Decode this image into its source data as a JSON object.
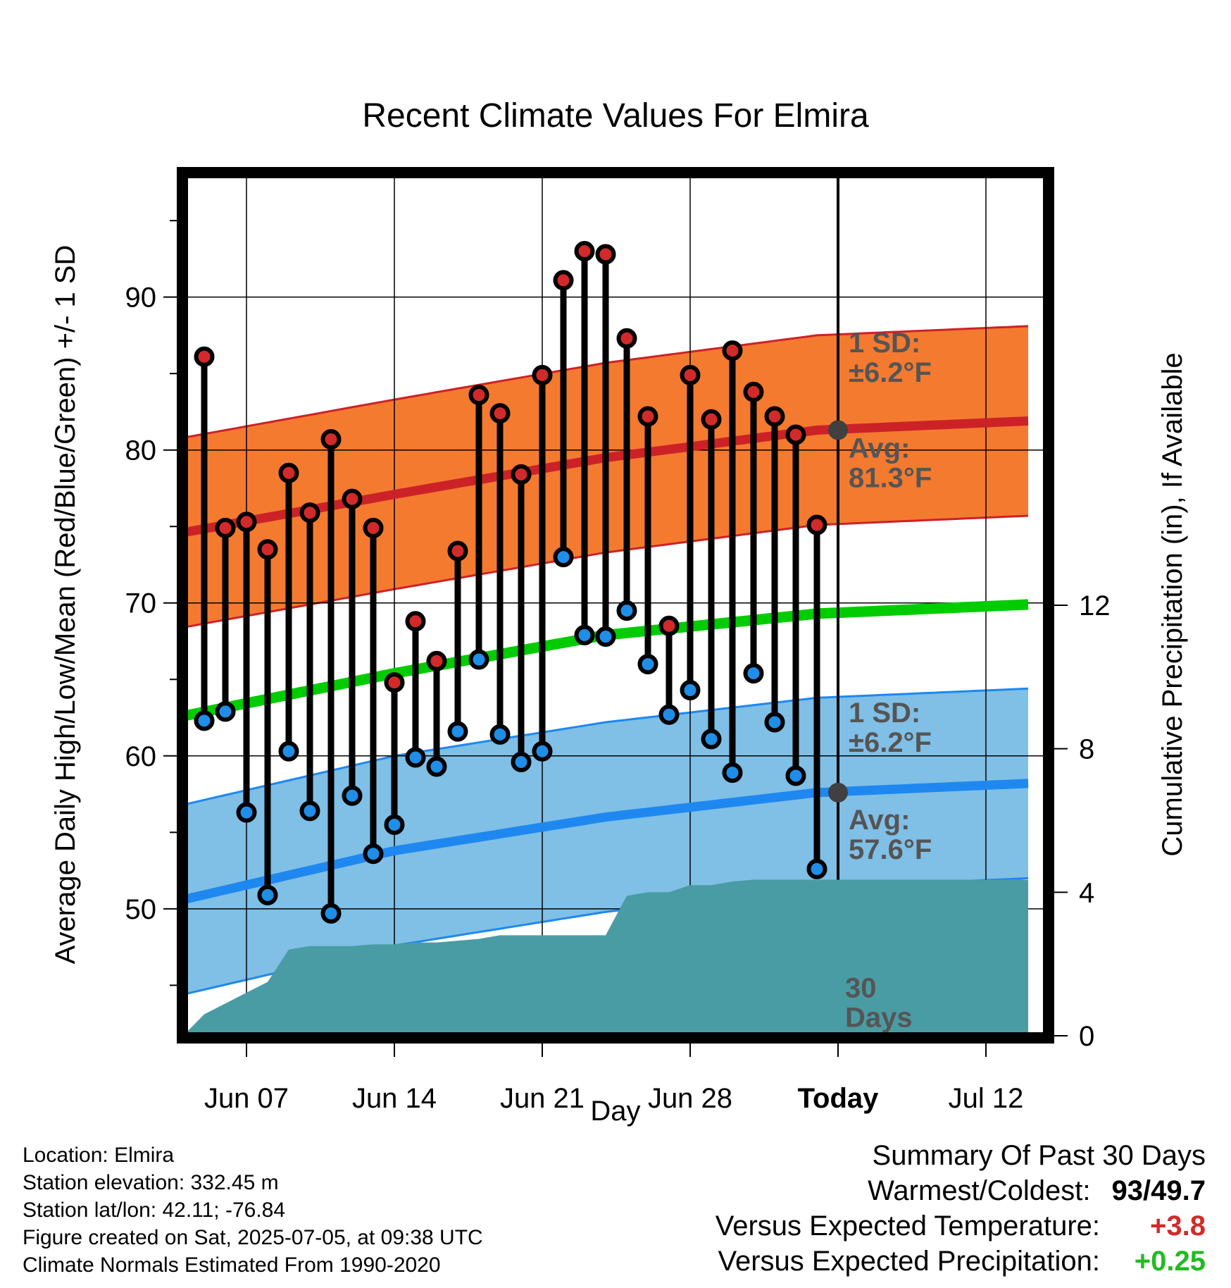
{
  "chart_data": {
    "type": "line",
    "title": "Recent Climate Values For Elmira",
    "xlabel": "Day",
    "ylabel": "Average Daily High/Low/Mean (Red/Blue/Green) +/- 1 SD",
    "y2label": "Cumulative Precipitation (in), If Available",
    "x_tick_labels": [
      "Jun 07",
      "Jun 14",
      "Jun 21",
      "Jun 28",
      "Today",
      "Jul 12"
    ],
    "y_ticks": [
      50,
      60,
      70,
      80,
      90
    ],
    "y2_ticks": [
      0,
      4,
      8,
      12
    ],
    "ylim": [
      41.7,
      98
    ],
    "y2lim": [
      0,
      24
    ],
    "days_observed": [
      "Jun 05",
      "Jun 06",
      "Jun 07",
      "Jun 08",
      "Jun 09",
      "Jun 10",
      "Jun 11",
      "Jun 12",
      "Jun 13",
      "Jun 14",
      "Jun 15",
      "Jun 16",
      "Jun 17",
      "Jun 18",
      "Jun 19",
      "Jun 20",
      "Jun 21",
      "Jun 22",
      "Jun 23",
      "Jun 24",
      "Jun 25",
      "Jun 26",
      "Jun 27",
      "Jun 28",
      "Jun 29",
      "Jun 30",
      "Jul 01",
      "Jul 02",
      "Jul 03",
      "Jul 04"
    ],
    "series": [
      {
        "name": "Daily High",
        "values": [
          86.1,
          74.9,
          75.3,
          73.5,
          78.5,
          75.9,
          80.7,
          76.8,
          74.9,
          64.8,
          68.8,
          66.2,
          73.4,
          83.6,
          82.4,
          78.4,
          84.9,
          91.1,
          93.0,
          92.8,
          87.3,
          82.2,
          68.5,
          84.9,
          82.0,
          86.5,
          83.8,
          82.2,
          81.0,
          75.1
        ]
      },
      {
        "name": "Daily Low",
        "values": [
          62.3,
          62.9,
          56.3,
          50.9,
          60.3,
          56.4,
          49.7,
          57.4,
          53.6,
          55.5,
          59.9,
          59.3,
          61.6,
          66.3,
          61.4,
          59.6,
          60.3,
          73.0,
          67.9,
          67.8,
          69.5,
          66.0,
          62.7,
          64.3,
          61.1,
          58.9,
          65.4,
          62.2,
          58.7,
          52.6
        ]
      }
    ],
    "normals": {
      "dates": [
        "Jun 04",
        "Jun 14",
        "Jun 24",
        "Jul 04",
        "Jul 14"
      ],
      "avg_high": [
        74.6,
        77.1,
        79.5,
        81.3,
        81.9
      ],
      "avg_low": [
        50.6,
        53.8,
        56.0,
        57.6,
        58.2
      ],
      "avg_mean": [
        62.6,
        65.4,
        67.9,
        69.3,
        69.9
      ],
      "sd": 6.2
    },
    "precipitation": {
      "name": "Cumulative Precipitation",
      "dates": [
        "Jun 04",
        "Jun 05",
        "Jun 06",
        "Jun 07",
        "Jun 08",
        "Jun 09",
        "Jun 10",
        "Jun 11",
        "Jun 12",
        "Jun 13",
        "Jun 14",
        "Jun 15",
        "Jun 16",
        "Jun 17",
        "Jun 18",
        "Jun 19",
        "Jun 20",
        "Jun 21",
        "Jun 22",
        "Jun 23",
        "Jun 24",
        "Jun 25",
        "Jun 26",
        "Jun 27",
        "Jun 28",
        "Jun 29",
        "Jun 30",
        "Jul 01",
        "Jul 02",
        "Jul 03",
        "Jul 04",
        "Jul 14"
      ],
      "values": [
        0.0,
        0.6,
        0.9,
        1.2,
        1.5,
        2.4,
        2.5,
        2.5,
        2.5,
        2.55,
        2.55,
        2.6,
        2.6,
        2.65,
        2.7,
        2.8,
        2.8,
        2.8,
        2.8,
        2.8,
        2.8,
        3.9,
        4.0,
        4.0,
        4.2,
        4.2,
        4.3,
        4.35,
        4.35,
        4.35,
        4.35,
        4.35
      ]
    },
    "annotations": {
      "sd_high": [
        "1 SD:",
        "±6.2°F"
      ],
      "avg_high": [
        "Avg:",
        "81.3°F"
      ],
      "sd_low": [
        "1 SD:",
        "±6.2°F"
      ],
      "avg_low": [
        "Avg:",
        "57.6°F"
      ],
      "window": [
        "30",
        "Days"
      ]
    },
    "colors": {
      "high_band": "#f47a30",
      "high_line": "#cc2227",
      "low_band": "#80bfe6",
      "low_line": "#1e88f0",
      "mean_line": "#00cc00",
      "precip": "#4a9ca4",
      "high_dot": "#d22a2a",
      "low_dot": "#1e8ee8",
      "today_dot": "#404040"
    },
    "grid": true
  },
  "footer": {
    "location": "Location: Elmira",
    "elevation": "Station elevation: 332.45 m",
    "latlon": "Station lat/lon: 42.11; -76.84",
    "created": "Figure created on Sat, 2025-07-05, at 09:38 UTC",
    "normals": "Climate Normals Estimated From 1990-2020"
  },
  "summary": {
    "heading": "Summary Of Past 30 Days",
    "warmest_coldest_label": "Warmest/Coldest:",
    "warmest_coldest_value": "93/49.7",
    "temp_label": "Versus Expected Temperature:",
    "temp_value": "+3.8",
    "temp_color": "#d22a2a",
    "precip_label": "Versus Expected Precipitation:",
    "precip_value": "+0.25",
    "precip_color": "#22bb22"
  }
}
